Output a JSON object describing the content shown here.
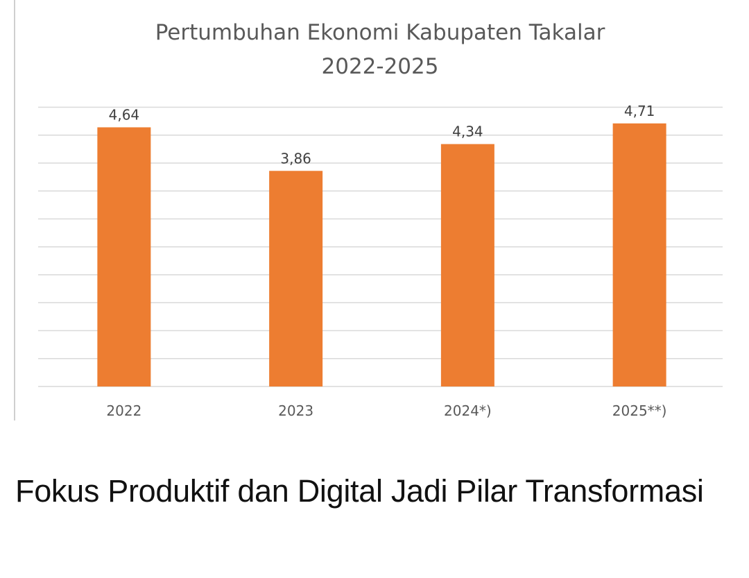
{
  "chart_data": {
    "type": "bar",
    "title_lines": [
      "Pertumbuhan Ekonomi Kabupaten Takalar",
      "2022-2025"
    ],
    "categories": [
      "2022",
      "2023",
      "2024*)",
      "2025**)"
    ],
    "values": [
      4.64,
      3.86,
      4.34,
      4.71
    ],
    "value_labels": [
      "4,64",
      "3,86",
      "4,34",
      "4,71"
    ],
    "bar_color": "#ED7D31",
    "gridline_color": "#D9D9D9",
    "grid": true,
    "ylim": [
      0,
      5
    ]
  },
  "headline": "Fokus Produktif dan Digital Jadi Pilar Transformasi"
}
